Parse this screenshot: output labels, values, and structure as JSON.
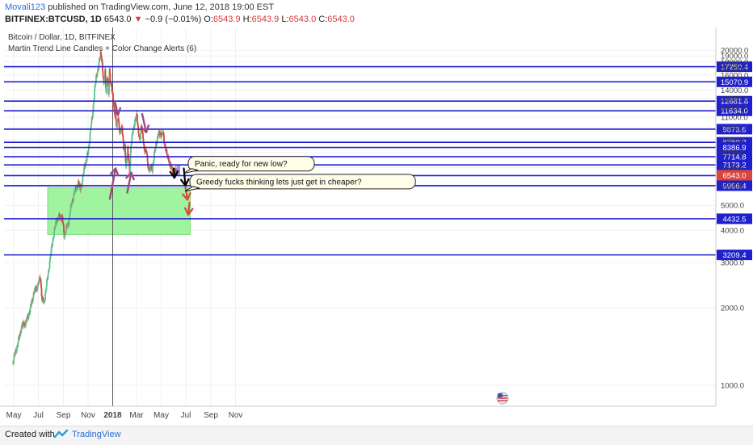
{
  "header": {
    "author": "Movali123",
    "published": "published on TradingView.com, June 12, 2018 19:00 EST",
    "symbol": "BITFINEX:BTCUSD, 1D",
    "last": "6543.0",
    "change": "−0.9 (−0.01%)",
    "o_label": "O:",
    "o": "6543.9",
    "h_label": "H:",
    "h": "6543.9",
    "l_label": "L:",
    "l": "6543.0",
    "c_label": "C:",
    "c": "6543.0"
  },
  "legend": {
    "title": "Bitcoin / Dollar, 1D, BITFINEX",
    "indicator": "Martin Trend Line Candles + Color Change Alerts (6)"
  },
  "footer": {
    "created": "Created with",
    "brand": "TradingView"
  },
  "colors": {
    "up": "#5cc38a",
    "down": "#d9463c",
    "level": "#1f1fcf",
    "zone": "#8ff28f",
    "arrow": "#9a4c82",
    "bg": "#ffffff"
  },
  "chart_data": {
    "type": "line",
    "title": "Bitcoin / Dollar, 1D, BITFINEX",
    "y_scale": "log",
    "ylim": [
      830,
      24500
    ],
    "y_ticks": [
      1000,
      2000,
      3000,
      4000,
      5000,
      6000,
      7000,
      8000,
      9000,
      10000,
      11000,
      12000,
      13000,
      14000,
      16000,
      17000,
      18000,
      19000,
      20000
    ],
    "x_ticks": [
      "May",
      "Jul",
      "Sep",
      "Nov",
      "2018",
      "Mar",
      "May",
      "Jul",
      "Sep",
      "Nov"
    ],
    "x_tick_days": [
      0,
      61,
      123,
      184,
      245,
      304,
      365,
      426,
      488,
      549
    ],
    "vline_day": 245,
    "levels": [
      17250.4,
      15070.9,
      12681.8,
      11634.0,
      9873.6,
      8780.2,
      8386.9,
      7714.8,
      7173.2,
      6517.9,
      5956.4,
      4432.5,
      3209.4
    ],
    "level_labels": [
      "17250.4",
      "15070.9",
      "12681.8",
      "11634.0",
      "9873.6",
      "8780.2",
      "8386.9",
      "7714.8",
      "7173.2",
      "6517.9",
      "5956.4",
      "4432.5",
      "3209.4"
    ],
    "last_price": 6543.0,
    "last_price_label": "6543.0",
    "zone": {
      "from_day": 84,
      "to_day": 437,
      "low": 3850,
      "high": 5850
    },
    "projection_zone": {
      "from_day": 403,
      "to_day": 412,
      "low": 6520,
      "high": 7200
    },
    "series": [
      {
        "x": [
          -3,
          10,
          20,
          30,
          40,
          50,
          60,
          66,
          70,
          75,
          85,
          95,
          105,
          112,
          120,
          125,
          130,
          135,
          140,
          150,
          160,
          165,
          170,
          175,
          180,
          185,
          190,
          195,
          200,
          205,
          210,
          215,
          218,
          220,
          223,
          226,
          229,
          232,
          235,
          237,
          240,
          245,
          250,
          255,
          258,
          262,
          268,
          272,
          275,
          278,
          282,
          287,
          290,
          295,
          300,
          305,
          308,
          312,
          316,
          320,
          323,
          328,
          333,
          338,
          343,
          348,
          353,
          358,
          361,
          365,
          369,
          373,
          377,
          381,
          385,
          390,
          395,
          400,
          404
        ],
        "close": [
          1220,
          1450,
          1700,
          1750,
          1950,
          2300,
          2450,
          2650,
          2150,
          2100,
          2700,
          3550,
          4350,
          4500,
          4500,
          3800,
          4100,
          4200,
          4800,
          5600,
          6100,
          5800,
          6200,
          7100,
          7500,
          8200,
          9800,
          11200,
          13900,
          16100,
          17200,
          19500,
          18700,
          16500,
          14500,
          16800,
          13800,
          15700,
          13600,
          16900,
          14800,
          13400,
          11300,
          10100,
          11200,
          9500,
          10200,
          8200,
          8600,
          7000,
          8200,
          6800,
          8400,
          9800,
          10500,
          11300,
          9800,
          8800,
          10300,
          9100,
          8100,
          8300,
          6800,
          7100,
          6800,
          8000,
          8600,
          9700,
          9300,
          9400,
          9700,
          8600,
          8300,
          7600,
          7400,
          7000,
          6600,
          6800,
          6540
        ]
      }
    ],
    "annotations": [
      {
        "type": "arrow",
        "from": [
          250,
          12700
        ],
        "to": [
          258,
          11200
        ]
      },
      {
        "type": "arrow",
        "from": [
          318,
          11300
        ],
        "to": [
          328,
          9600
        ]
      },
      {
        "type": "arrow",
        "from": [
          238,
          5300
        ],
        "to": [
          252,
          6950
        ]
      },
      {
        "type": "arrow",
        "from": [
          281,
          5600
        ],
        "to": [
          291,
          6700
        ]
      },
      {
        "type": "arrow",
        "from": [
          396,
          6950
        ],
        "to": [
          398,
          6400
        ]
      },
      {
        "type": "arrow",
        "from": [
          421,
          6950
        ],
        "to": [
          425,
          5960
        ]
      },
      {
        "type": "arrow",
        "from": [
          425,
          5900
        ],
        "to": [
          430,
          5250
        ]
      },
      {
        "type": "arrow",
        "from": [
          435,
          5120
        ],
        "to": [
          432,
          4600
        ]
      },
      {
        "type": "callout",
        "text": "Panic, ready for new low?",
        "day": 432,
        "value": 7250
      },
      {
        "type": "callout",
        "text": "Greedy fucks thinking lets just get in cheaper?",
        "day": 436,
        "value": 6180
      },
      {
        "type": "label",
        "text": "2018",
        "day": 245
      }
    ]
  }
}
